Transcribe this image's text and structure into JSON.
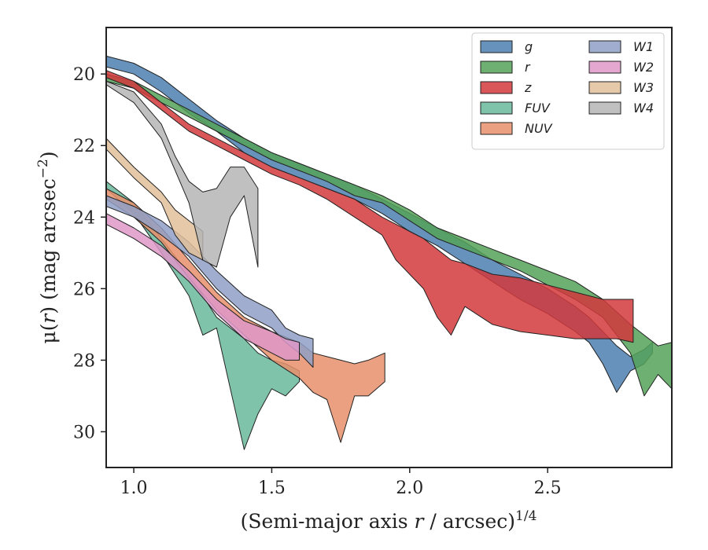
{
  "chart_data": {
    "type": "area",
    "title": "",
    "xlabel": "(Semi-major axis r / arcsec)",
    "xlabel_parts": {
      "pre": "(Semi-major axis ",
      "var": "r",
      "post": " / arcsec)",
      "sup": "1/4"
    },
    "ylabel": "μ(r) (mag arcsec⁻²)",
    "ylabel_parts": {
      "pre": "μ(",
      "var": "r",
      "post": ") (mag arcsec",
      "sup": "−2",
      "close": ")"
    },
    "xlim": [
      0.9,
      2.95
    ],
    "ylim": [
      31.0,
      18.7
    ],
    "y_inverted": true,
    "x_ticks": [
      1.0,
      1.5,
      2.0,
      2.5
    ],
    "x_tick_labels": [
      "1.0",
      "1.5",
      "2.0",
      "2.5"
    ],
    "y_ticks": [
      20,
      22,
      24,
      26,
      28,
      30
    ],
    "y_tick_labels": [
      "20",
      "22",
      "24",
      "26",
      "28",
      "30"
    ],
    "grid": false,
    "legend": {
      "placement": "top-right",
      "columns": 2
    },
    "series": [
      {
        "name": "g",
        "color": "#4c7fb0",
        "x": [
          0.9,
          1.0,
          1.1,
          1.2,
          1.3,
          1.4,
          1.5,
          1.6,
          1.7,
          1.8,
          1.9,
          2.0,
          2.1,
          2.2,
          2.3,
          2.4,
          2.5,
          2.6,
          2.65,
          2.7,
          2.75,
          2.8,
          2.85,
          2.88
        ],
        "top": [
          19.5,
          19.7,
          20.1,
          20.7,
          21.3,
          21.8,
          22.2,
          22.5,
          22.8,
          23.1,
          23.5,
          23.9,
          24.3,
          24.7,
          25.2,
          25.6,
          26.0,
          26.5,
          26.8,
          27.2,
          27.6,
          27.9,
          27.7,
          27.5
        ],
        "bottom": [
          19.8,
          20.0,
          20.5,
          21.1,
          21.6,
          22.2,
          22.6,
          22.9,
          23.2,
          23.5,
          23.9,
          24.4,
          24.8,
          25.3,
          25.8,
          26.3,
          26.7,
          27.2,
          27.5,
          28.1,
          28.9,
          28.3,
          28.1,
          27.8
        ]
      },
      {
        "name": "r",
        "color": "#55a258",
        "x": [
          0.9,
          1.0,
          1.1,
          1.2,
          1.3,
          1.4,
          1.5,
          1.6,
          1.7,
          1.8,
          1.9,
          2.0,
          2.1,
          2.2,
          2.3,
          2.4,
          2.5,
          2.6,
          2.7,
          2.8,
          2.85,
          2.9,
          2.95
        ],
        "top": [
          20.0,
          20.2,
          20.6,
          21.0,
          21.4,
          21.8,
          22.2,
          22.5,
          22.8,
          23.1,
          23.4,
          23.8,
          24.3,
          24.6,
          24.9,
          25.2,
          25.5,
          25.8,
          26.3,
          27.0,
          27.3,
          27.6,
          27.5
        ],
        "bottom": [
          20.2,
          20.4,
          20.8,
          21.2,
          21.6,
          22.0,
          22.4,
          22.7,
          23.0,
          23.4,
          23.6,
          24.1,
          24.6,
          24.9,
          25.2,
          25.5,
          25.9,
          26.3,
          26.8,
          27.8,
          29.0,
          28.4,
          28.8
        ]
      },
      {
        "name": "z",
        "color": "#d2383c",
        "x": [
          0.9,
          1.0,
          1.1,
          1.2,
          1.3,
          1.4,
          1.5,
          1.6,
          1.7,
          1.8,
          1.9,
          1.95,
          2.0,
          2.05,
          2.1,
          2.15,
          2.2,
          2.3,
          2.4,
          2.5,
          2.6,
          2.7,
          2.75,
          2.81
        ],
        "top": [
          19.9,
          20.2,
          20.8,
          21.4,
          21.8,
          22.2,
          22.6,
          22.9,
          23.2,
          23.5,
          24.0,
          24.2,
          24.4,
          24.6,
          24.9,
          25.2,
          25.3,
          25.6,
          25.7,
          25.9,
          26.1,
          26.3,
          26.3,
          26.3
        ],
        "bottom": [
          20.1,
          20.4,
          21.0,
          21.6,
          22.0,
          22.4,
          22.8,
          23.1,
          23.5,
          24.0,
          24.5,
          25.2,
          25.6,
          26.0,
          26.8,
          27.3,
          26.5,
          27.0,
          27.2,
          27.3,
          27.4,
          27.4,
          27.4,
          27.5
        ]
      },
      {
        "name": "FUV",
        "color": "#6ab89c",
        "x": [
          0.9,
          1.0,
          1.1,
          1.2,
          1.25,
          1.3,
          1.35,
          1.4,
          1.45,
          1.5,
          1.55,
          1.6
        ],
        "top": [
          23.0,
          23.6,
          24.6,
          25.6,
          26.2,
          26.8,
          27.1,
          27.4,
          27.8,
          28.0,
          28.1,
          28.3
        ],
        "bottom": [
          23.2,
          23.9,
          25.0,
          26.2,
          27.3,
          27.1,
          28.8,
          30.5,
          29.5,
          28.8,
          29.0,
          28.6
        ]
      },
      {
        "name": "NUV",
        "color": "#e8906b",
        "x": [
          0.9,
          1.0,
          1.1,
          1.2,
          1.3,
          1.4,
          1.5,
          1.6,
          1.65,
          1.7,
          1.75,
          1.8,
          1.85,
          1.91
        ],
        "top": [
          23.2,
          23.6,
          24.3,
          25.2,
          26.1,
          26.8,
          27.2,
          27.5,
          27.8,
          27.9,
          28.0,
          28.1,
          28.0,
          27.8
        ],
        "bottom": [
          23.5,
          24.0,
          24.7,
          25.7,
          26.6,
          27.3,
          28.0,
          28.5,
          28.9,
          29.1,
          30.3,
          29.0,
          29.0,
          28.6
        ]
      },
      {
        "name": "W1",
        "color": "#8f9fc6",
        "x": [
          0.9,
          1.0,
          1.1,
          1.2,
          1.3,
          1.4,
          1.5,
          1.55,
          1.6,
          1.65
        ],
        "top": [
          23.4,
          23.7,
          24.1,
          24.7,
          25.5,
          26.2,
          26.6,
          27.1,
          27.3,
          27.4
        ],
        "bottom": [
          23.7,
          24.0,
          24.5,
          25.1,
          26.0,
          26.7,
          27.1,
          27.5,
          27.8,
          28.2
        ]
      },
      {
        "name": "W2",
        "color": "#de98c8",
        "x": [
          0.9,
          1.0,
          1.1,
          1.2,
          1.3,
          1.4,
          1.5,
          1.55,
          1.6
        ],
        "top": [
          23.9,
          24.3,
          24.8,
          25.5,
          26.3,
          26.9,
          27.2,
          27.4,
          27.5
        ],
        "bottom": [
          24.2,
          24.6,
          25.1,
          25.8,
          26.7,
          27.4,
          27.8,
          28.0,
          28.0
        ]
      },
      {
        "name": "W3",
        "color": "#e0c09a",
        "x": [
          0.9,
          1.0,
          1.1,
          1.15,
          1.2,
          1.25
        ],
        "top": [
          21.8,
          22.6,
          23.3,
          23.8,
          24.1,
          24.4
        ],
        "bottom": [
          22.1,
          22.9,
          23.6,
          24.5,
          25.0,
          25.2
        ]
      },
      {
        "name": "W4",
        "color": "#b5b5b5",
        "x": [
          0.9,
          1.0,
          1.1,
          1.15,
          1.2,
          1.25,
          1.3,
          1.35,
          1.4,
          1.45
        ],
        "top": [
          20.2,
          20.5,
          21.4,
          22.3,
          23.0,
          23.3,
          23.2,
          22.6,
          22.6,
          23.2
        ],
        "bottom": [
          20.3,
          20.8,
          21.8,
          22.7,
          23.6,
          25.2,
          25.4,
          24.0,
          23.4,
          25.4
        ]
      }
    ]
  }
}
